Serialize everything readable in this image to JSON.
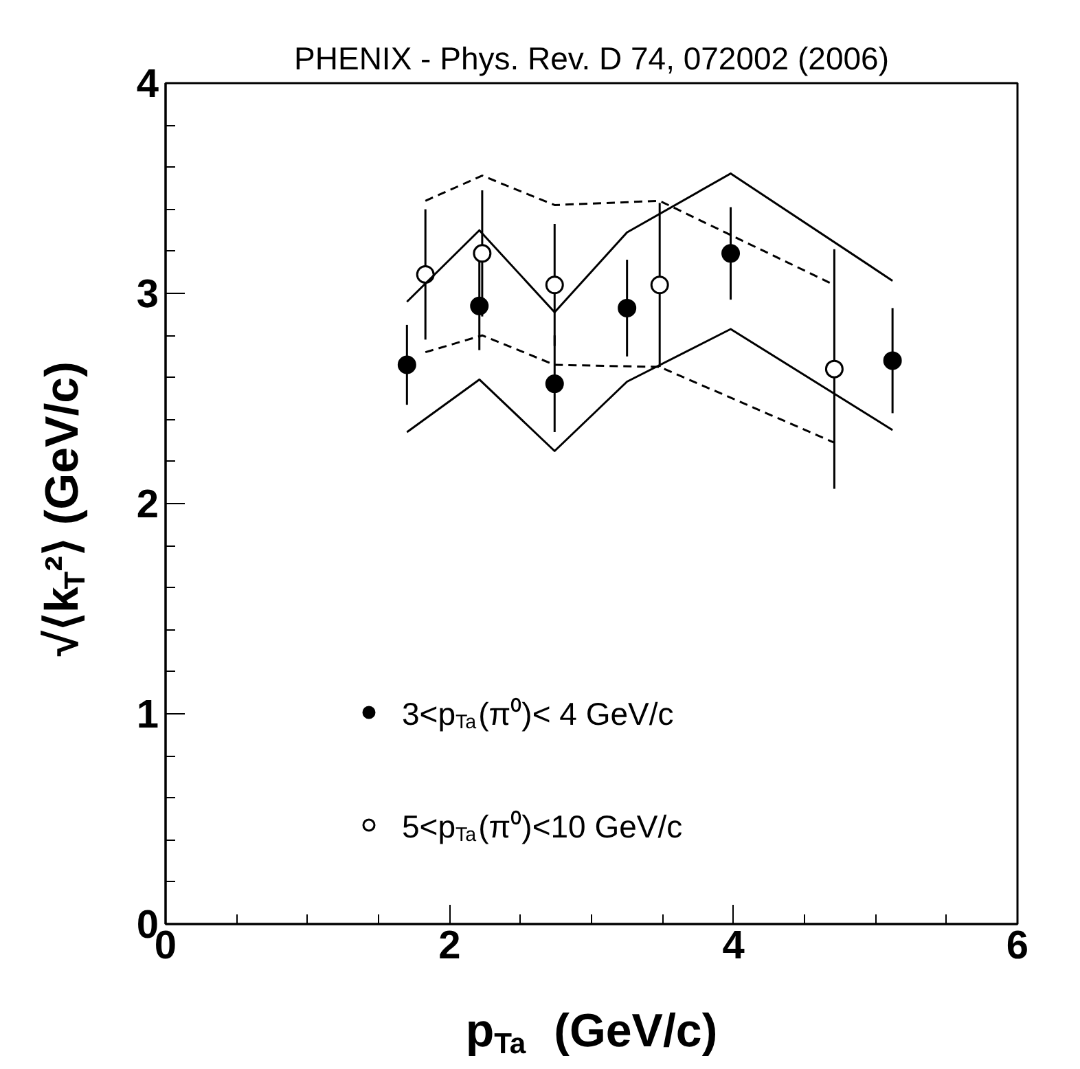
{
  "chart_data": {
    "type": "scatter",
    "title": "PHENIX - Phys. Rev. D 74, 072002 (2006)",
    "xlabel": "p$_{Ta}$  (GeV/c)",
    "ylabel": "√⟨k$_{T}$²⟩  (GeV/c)",
    "xlim": [
      0,
      6
    ],
    "ylim": [
      0,
      4
    ],
    "xticks": [
      0,
      2,
      4,
      6
    ],
    "yticks": [
      0,
      1,
      2,
      3,
      4
    ],
    "grid": false,
    "legend": "bottom",
    "series": [
      {
        "name": "3<p$_{Ta}$(π⁰)< 4 GeV/c",
        "color": "#000000",
        "marker": "circle",
        "x": [
          1.7,
          2.21,
          2.74,
          3.25,
          3.98,
          5.12
        ],
        "values": [
          2.66,
          2.94,
          2.57,
          2.93,
          3.19,
          2.68
        ],
        "errors": [
          0.19,
          0.21,
          0.23,
          0.23,
          0.22,
          0.25
        ]
      },
      {
        "name": "5<p$_{Ta}$(π⁰)<10 GeV/c",
        "color": "#ffffff",
        "marker": "circle",
        "x": [
          1.83,
          2.23,
          2.74,
          3.48,
          4.71
        ],
        "values": [
          3.09,
          3.19,
          3.04,
          3.04,
          2.64
        ],
        "errors": [
          0.31,
          0.3,
          0.29,
          0.39,
          0.57
        ]
      },
      {
        "type": "line",
        "color": "#000000",
        "line_style": "solid",
        "x": [
          1.7,
          2.21,
          2.74,
          3.25,
          3.98,
          5.12
        ],
        "values": [
          2.96,
          3.3,
          2.91,
          3.29,
          3.57,
          3.06
        ]
      },
      {
        "type": "line",
        "color": "#000000",
        "line_style": "solid",
        "x": [
          1.7,
          2.21,
          2.74,
          3.25,
          3.98,
          5.12
        ],
        "values": [
          2.34,
          2.59,
          2.25,
          2.58,
          2.83,
          2.35
        ]
      },
      {
        "type": "line",
        "color": "#000000",
        "line_style": "dashed",
        "x": [
          1.83,
          2.23,
          2.74,
          3.48,
          4.71
        ],
        "values": [
          3.44,
          3.56,
          3.42,
          3.44,
          3.04
        ]
      },
      {
        "type": "line",
        "color": "#000000",
        "line_style": "dashed",
        "x": [
          1.83,
          2.23,
          2.74,
          3.48,
          4.71
        ],
        "values": [
          2.72,
          2.8,
          2.66,
          2.65,
          2.29
        ]
      }
    ]
  }
}
